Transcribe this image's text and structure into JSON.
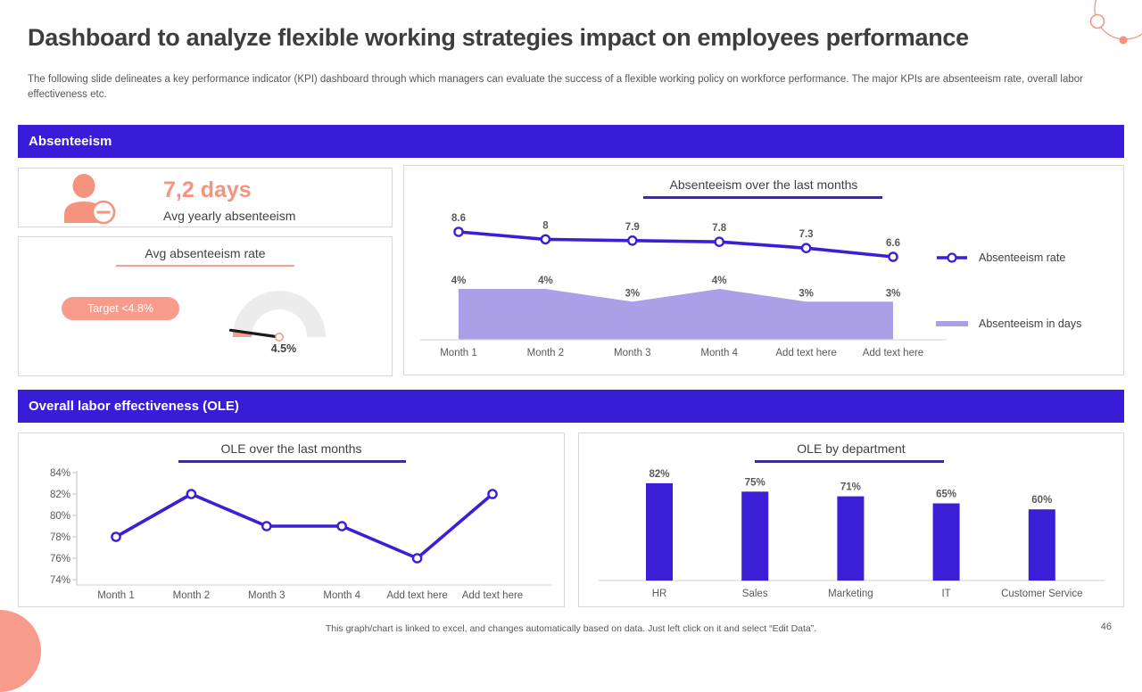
{
  "page": {
    "title": "Dashboard to analyze flexible working strategies impact on employees performance",
    "subtitle": "The following slide delineates a key performance indicator (KPI) dashboard through which managers can evaluate the success of a flexible working policy on workforce performance. The major KPIs are absenteeism rate, overall labor effectiveness etc.",
    "footer_note": "This graph/chart is linked to excel, and changes automatically based on data. Just left click on it and select “Edit Data”.",
    "page_number": "46"
  },
  "colors": {
    "banner": "#381dd8",
    "title_underline": "#3d2d91",
    "salmon": "#f5937f",
    "salmon_light": "#f79c8b",
    "line_series": "#3b1fd6",
    "area_series": "#aba0e8",
    "bar": "#3b1fd6",
    "gauge_track": "#ececec",
    "needle": "#1a1a1a",
    "label_gray": "#595959"
  },
  "absenteeism": {
    "band_label": "Absenteeism",
    "kpi": {
      "icon": "person-minus-icon",
      "value": "7,2 days",
      "label": "Avg yearly absenteeism"
    },
    "gauge": {
      "title": "Avg absenteeism rate",
      "target_label": "Target <4.8%",
      "value": 4.5,
      "target": 4.8,
      "value_label": "4.5%",
      "scale_max": 100
    }
  },
  "ole": {
    "band_label": "Overall labor effectiveness (OLE)"
  },
  "chart_data": [
    {
      "id": "absenteeism_combo",
      "type": "line",
      "title": "Absenteeism over the last months",
      "categories": [
        "Month 1",
        "Month 2",
        "Month 3",
        "Month 4",
        "Add text here",
        "Add text here"
      ],
      "series": [
        {
          "name": "Absenteeism rate",
          "type": "line",
          "values": [
            8.6,
            8,
            7.9,
            7.8,
            7.3,
            6.6
          ],
          "labels": [
            "8.6",
            "8",
            "7.9",
            "7.8",
            "7.3",
            "6.6"
          ]
        },
        {
          "name": "Absenteeism in days",
          "type": "area",
          "values": [
            4,
            4,
            3,
            4,
            3,
            3
          ],
          "labels": [
            "4%",
            "4%",
            "3%",
            "4%",
            "3%",
            "3%"
          ]
        }
      ],
      "legend_position": "right",
      "grid": false
    },
    {
      "id": "ole_line",
      "type": "line",
      "title": "OLE over the last months",
      "categories": [
        "Month 1",
        "Month 2",
        "Month 3",
        "Month 4",
        "Add text here",
        "Add text here"
      ],
      "values": [
        78,
        82,
        79,
        79,
        76,
        82
      ],
      "ylim": [
        74,
        84
      ],
      "yticks": [
        "84%",
        "82%",
        "80%",
        "78%",
        "76%",
        "74%"
      ],
      "ytick_values": [
        84,
        82,
        80,
        78,
        76,
        74
      ],
      "grid": false
    },
    {
      "id": "ole_bar",
      "type": "bar",
      "title": "OLE by department",
      "categories": [
        "HR",
        "Sales",
        "Marketing",
        "IT",
        "Customer Service"
      ],
      "values": [
        82,
        75,
        71,
        65,
        60
      ],
      "labels": [
        "82%",
        "75%",
        "71%",
        "65%",
        "60%"
      ],
      "ylim": [
        0,
        100
      ],
      "grid": false
    }
  ]
}
